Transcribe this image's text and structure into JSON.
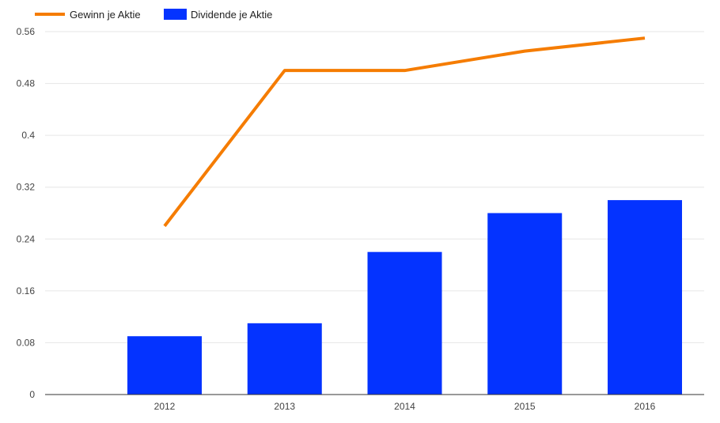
{
  "chart_data": {
    "type": "bar",
    "categories": [
      "2012",
      "2013",
      "2014",
      "2015",
      "2016"
    ],
    "series": [
      {
        "name": "Gewinn je Aktie",
        "type": "line",
        "color": "#f57c00",
        "values": [
          0.26,
          0.5,
          0.5,
          0.53,
          0.55
        ]
      },
      {
        "name": "Dividende je Aktie",
        "type": "bar",
        "color": "#0433ff",
        "values": [
          0.09,
          0.11,
          0.22,
          0.28,
          0.3
        ]
      }
    ],
    "yticks": [
      "0",
      "0.08",
      "0.16",
      "0.24",
      "0.32",
      "0.4",
      "0.48",
      "0.56"
    ],
    "ylim": [
      0,
      0.56
    ],
    "grid": true,
    "legend_position": "top-left"
  }
}
